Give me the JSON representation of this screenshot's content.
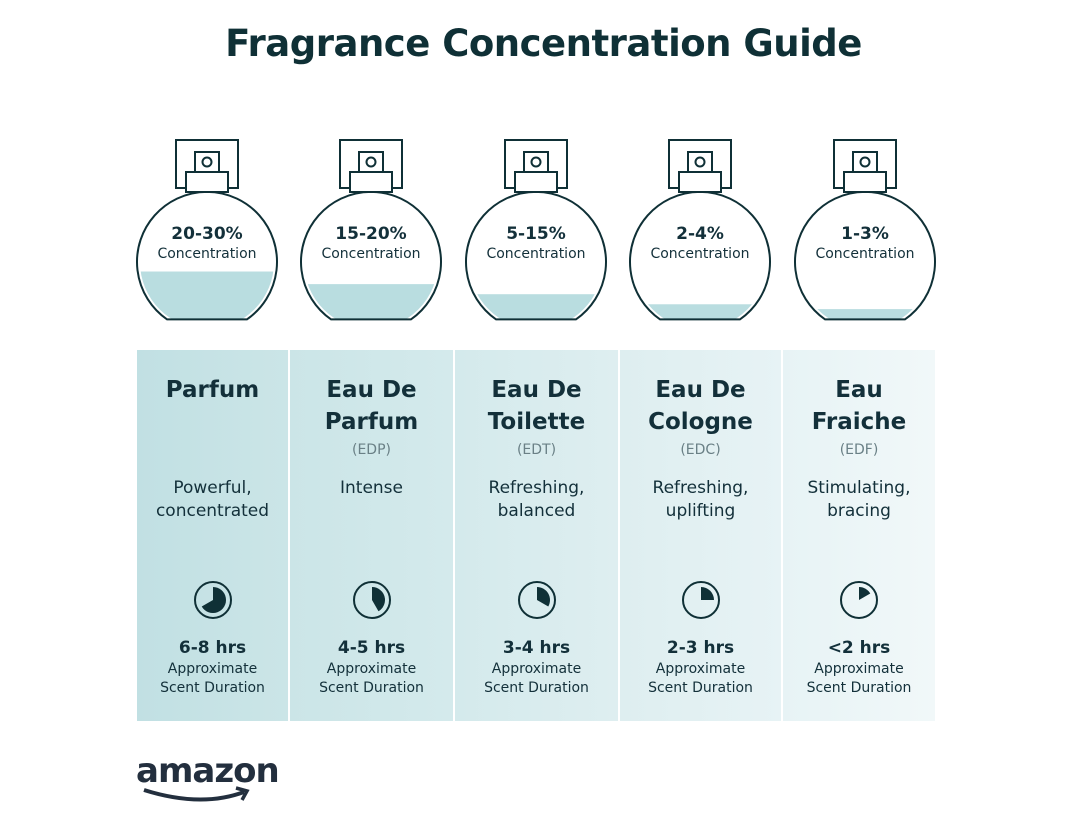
{
  "title": "Fragrance Concentration Guide",
  "colors": {
    "dark": "#0f3036",
    "liquid": "#b9dde0",
    "panel_start": "#c1e0e3",
    "panel_end": "#f1f8f9"
  },
  "duration_label": [
    "Approximate",
    "Scent Duration"
  ],
  "concentration_label": "Concentration",
  "types": [
    {
      "pct": "20-30%",
      "fill_level": 0.38,
      "name": "Parfum",
      "abbr": "",
      "desc": "Powerful, concentrated",
      "hrs": "6-8 hrs",
      "clock_fraction": 0.667
    },
    {
      "pct": "15-20%",
      "fill_level": 0.28,
      "name": "Eau De Parfum",
      "abbr": "(EDP)",
      "desc": "Intense",
      "hrs": "4-5 hrs",
      "clock_fraction": 0.417
    },
    {
      "pct": "5-15%",
      "fill_level": 0.2,
      "name": "Eau De Toilette",
      "abbr": "(EDT)",
      "desc": "Refreshing, balanced",
      "hrs": "3-4 hrs",
      "clock_fraction": 0.333
    },
    {
      "pct": "2-4%",
      "fill_level": 0.12,
      "name": "Eau De Cologne",
      "abbr": "(EDC)",
      "desc": "Refreshing, uplifting",
      "hrs": "2-3 hrs",
      "clock_fraction": 0.25
    },
    {
      "pct": "1-3%",
      "fill_level": 0.05,
      "name": "Eau Fraiche",
      "abbr": "(EDF)",
      "desc": "Stimulating, bracing",
      "hrs": "<2 hrs",
      "clock_fraction": 0.167
    }
  ],
  "logo": "amazon"
}
